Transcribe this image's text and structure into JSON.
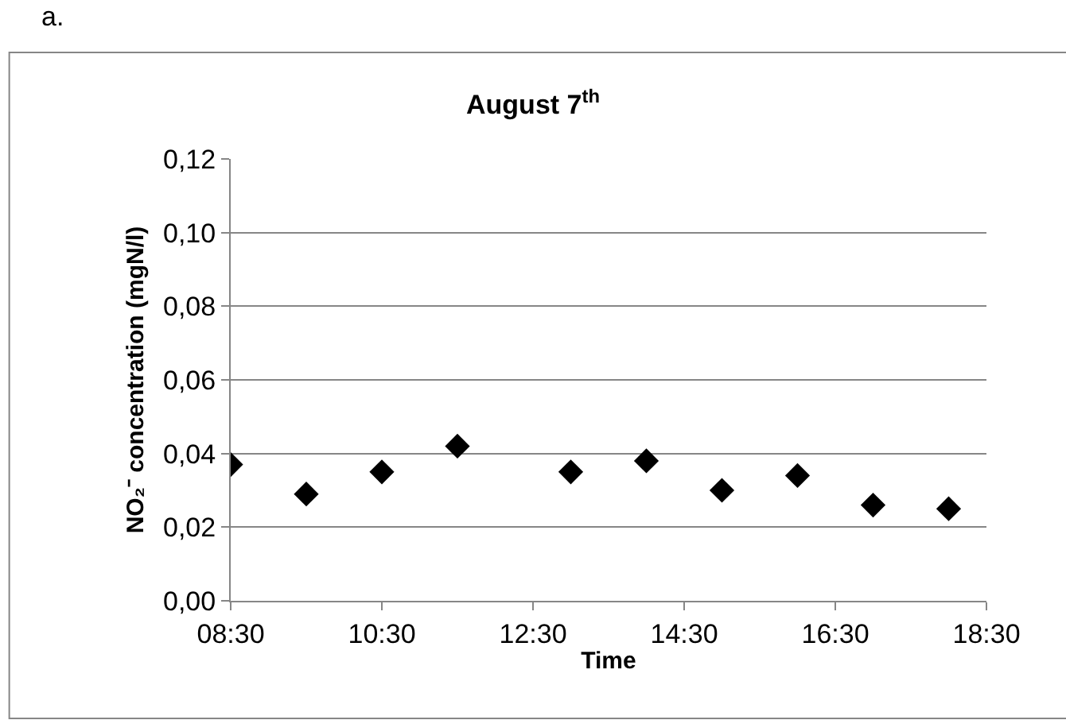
{
  "chart_data": {
    "type": "scatter",
    "title": "August 7$^{th}$",
    "xlabel": "Time",
    "ylabel": "NO₂⁻ concentration (mgN/l)",
    "annotations": [
      "a."
    ],
    "x": [
      8.5,
      9.5,
      10.5,
      11.5,
      13,
      14,
      15,
      16,
      17,
      18
    ],
    "series": [
      {
        "color": "#000000",
        "values": [
          0.037,
          0.029,
          0.035,
          0.042,
          0.035,
          0.038,
          0.03,
          0.034,
          0.026,
          0.025
        ]
      }
    ],
    "marker": "diamond",
    "grid": "y",
    "xlim": [
      8.5,
      18.5
    ],
    "xticks": [
      {
        "value": 8.5,
        "label": "08:30"
      },
      {
        "value": 10.5,
        "label": "10:30"
      },
      {
        "value": 12.5,
        "label": "12:30"
      },
      {
        "value": 14.5,
        "label": "14:30"
      },
      {
        "value": 16.5,
        "label": "16:30"
      },
      {
        "value": 18.5,
        "label": "18:30"
      }
    ],
    "ylim": [
      0,
      0.12
    ],
    "yticks": [
      {
        "value": 0,
        "label": "0,00"
      },
      {
        "value": 0.02,
        "label": "0,02"
      },
      {
        "value": 0.04,
        "label": "0,04"
      },
      {
        "value": 0.06,
        "label": "0,06"
      },
      {
        "value": 0.08,
        "label": "0,08"
      },
      {
        "value": 0.1,
        "label": "0,10"
      },
      {
        "value": 0.12,
        "label": "0,12"
      }
    ]
  }
}
